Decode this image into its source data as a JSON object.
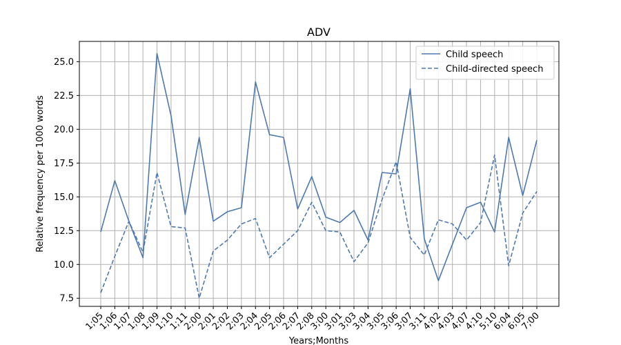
{
  "chart_data": {
    "type": "line",
    "title": "ADV",
    "xlabel": "Years;Months",
    "ylabel": "Relative frequency per 1000 words",
    "categories": [
      "1;05",
      "1;06",
      "1;07",
      "1;08",
      "1;09",
      "1;10",
      "1;11",
      "2;00",
      "2;01",
      "2;02",
      "2;03",
      "2;04",
      "2;05",
      "2;06",
      "2;07",
      "2;08",
      "3;00",
      "3;01",
      "3;03",
      "3;04",
      "3;05",
      "3;06",
      "3;07",
      "3;11",
      "4;02",
      "4;03",
      "4;07",
      "4;10",
      "5;10",
      "6;04",
      "6;05",
      "7;00"
    ],
    "ylim": [
      6.9,
      26.5
    ],
    "yticks": [
      7.5,
      10.0,
      12.5,
      15.0,
      17.5,
      20.0,
      22.5,
      25.0
    ],
    "ytick_labels": [
      "7.5",
      "10.0",
      "12.5",
      "15.0",
      "17.5",
      "20.0",
      "22.5",
      "25.0"
    ],
    "grid": true,
    "legend_position": "top-right",
    "color": "#4c78b0",
    "series": [
      {
        "name": "Child speech",
        "style": "solid",
        "values": [
          12.4,
          16.2,
          13.2,
          10.5,
          25.6,
          21.0,
          13.7,
          19.4,
          13.2,
          13.9,
          14.2,
          23.5,
          19.6,
          19.4,
          14.1,
          16.5,
          13.5,
          13.1,
          14.0,
          11.8,
          16.8,
          16.7,
          23.0,
          11.9,
          8.8,
          11.5,
          14.2,
          14.6,
          12.4,
          19.4,
          15.1,
          19.2
        ]
      },
      {
        "name": "Child-directed speech",
        "style": "dashed",
        "values": [
          7.9,
          10.6,
          13.2,
          10.9,
          16.8,
          12.8,
          12.7,
          7.5,
          11.0,
          11.8,
          13.0,
          13.4,
          10.5,
          11.5,
          12.5,
          14.6,
          12.5,
          12.4,
          10.2,
          11.6,
          14.8,
          17.6,
          12.0,
          10.7,
          13.3,
          13.0,
          11.8,
          13.1,
          18.1,
          9.9,
          13.8,
          15.4
        ]
      }
    ]
  }
}
